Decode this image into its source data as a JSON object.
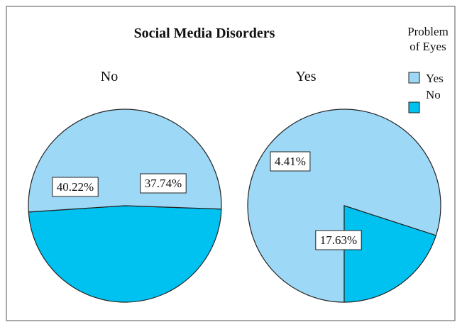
{
  "chart_data": {
    "type": "pie",
    "title": "Social Media Disorders",
    "legend": {
      "title_lines": [
        "Problem",
        "of Eyes"
      ],
      "placement": "top-right",
      "entries": [
        {
          "name": "Yes",
          "color": "#9dd9f6"
        },
        {
          "name": "No",
          "color": "#00c2f0"
        }
      ]
    },
    "pies": [
      {
        "label": "No",
        "slices": [
          {
            "name": "No",
            "value": 37.74,
            "display": "37.74%"
          },
          {
            "name": "Yes",
            "value": 40.22,
            "display": "40.22%"
          }
        ]
      },
      {
        "label": "Yes",
        "slices": [
          {
            "name": "Yes",
            "value": 17.63,
            "display": "17.63%"
          },
          {
            "name": "No",
            "value": 4.41,
            "display": "4.41%"
          }
        ]
      }
    ]
  },
  "colors": {
    "yes_slice": "#9dd9f6",
    "no_slice": "#00c2f0",
    "outline": "#222222",
    "frame": "#555555"
  }
}
